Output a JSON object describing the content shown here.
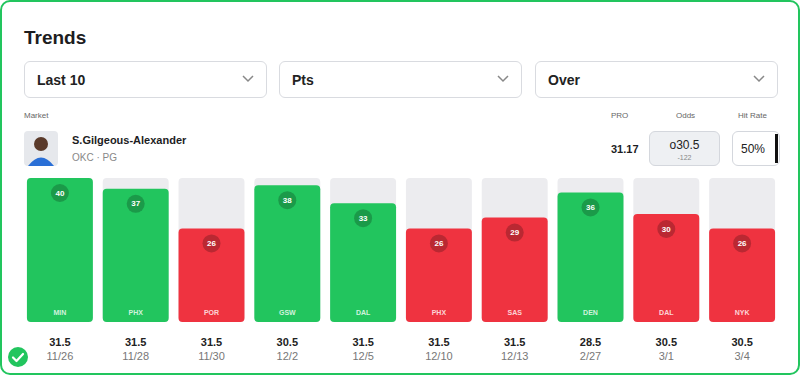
{
  "header": {
    "title": "Trends",
    "filters": [
      "Last 10",
      "Pts",
      "Over"
    ]
  },
  "market": {
    "column_labels": [
      "Market",
      "PRO",
      "Odds",
      "Hit Rate"
    ],
    "player": "S.Gilgeous-Alexander",
    "team": "OKC · PG",
    "pro": 31.17,
    "odds_line": "o30.5",
    "odds_price": "-122",
    "hit_rate": {
      "value": 50,
      "label": "50%"
    }
  },
  "chart_data": {
    "type": "bar",
    "categories": [
      "MIN",
      "PHX",
      "POR",
      "GSW",
      "DAL",
      "PHX",
      "SAS",
      "DEN",
      "DAL",
      "NYK"
    ],
    "dates": [
      "11/26",
      "11/28",
      "11/30",
      "12/2",
      "12/5",
      "12/10",
      "12/13",
      "2/27",
      "3/1",
      "3/4"
    ],
    "lines": [
      31.5,
      31.5,
      31.5,
      30.5,
      31.5,
      31.5,
      31.5,
      28.5,
      30.5,
      30.5
    ],
    "values": [
      40,
      37,
      26,
      38,
      33,
      26,
      29,
      36,
      30,
      26
    ],
    "colors": [
      "#22c55e",
      "#22c55e",
      "#ef3340",
      "#22c55e",
      "#22c55e",
      "#ef3340",
      "#ef3340",
      "#22c55e",
      "#ef3340",
      "#ef3340"
    ],
    "ylim": [
      0,
      40
    ],
    "data_labels": true,
    "tick_labels": false,
    "grid": false
  }
}
